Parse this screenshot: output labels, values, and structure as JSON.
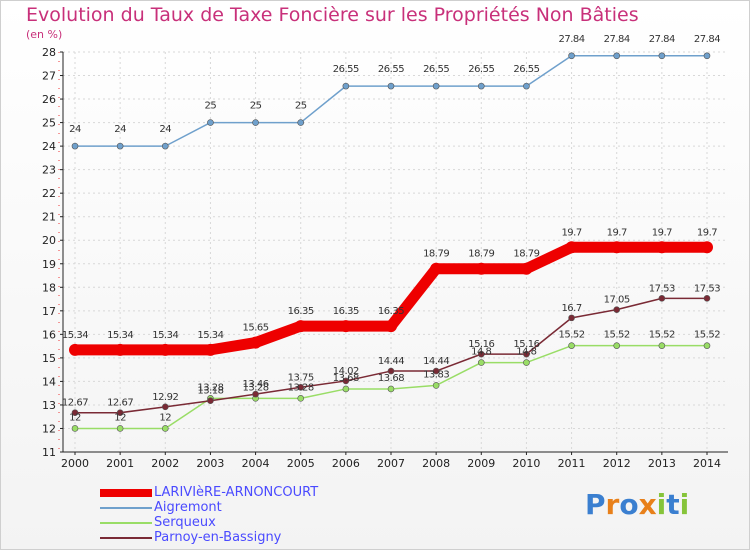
{
  "chart_data": {
    "type": "line",
    "title": "Evolution du Taux de Taxe Foncière sur les Propriétés Non Bâties",
    "unit_label": "(en %)",
    "xlabel": "",
    "ylabel": "",
    "ylim": [
      11,
      28
    ],
    "yticks": [
      11,
      12,
      13,
      14,
      15,
      16,
      17,
      18,
      19,
      20,
      21,
      22,
      23,
      24,
      25,
      26,
      27,
      28
    ],
    "categories": [
      "2000",
      "2001",
      "2002",
      "2003",
      "2004",
      "2005",
      "2006",
      "2007",
      "2008",
      "2009",
      "2010",
      "2011",
      "2012",
      "2013",
      "2014"
    ],
    "grid": true,
    "legend_position": "bottom-left",
    "series": [
      {
        "name": "LARIVIèRE-ARNONCOURT",
        "color": "#ee0000",
        "values": [
          15.34,
          15.34,
          15.34,
          15.34,
          15.65,
          16.35,
          16.35,
          16.35,
          18.79,
          18.79,
          18.79,
          19.7,
          19.7,
          19.7,
          19.7
        ],
        "labels": [
          "15.34",
          "15.34",
          "15.34",
          "15.34",
          "15.65",
          "16.35",
          "16.35",
          "16.35",
          "18.79",
          "18.79",
          "18.79",
          "19.7",
          "19.7",
          "19.7",
          "19.7"
        ]
      },
      {
        "name": "Aigremont",
        "color": "#6fa0cc",
        "values": [
          24,
          24,
          24,
          25,
          25,
          25,
          26.55,
          26.55,
          26.55,
          26.55,
          26.55,
          27.84,
          27.84,
          27.84,
          27.84
        ],
        "labels": [
          "24",
          "24",
          "24",
          "25",
          "25",
          "25",
          "26.55",
          "26.55",
          "26.55",
          "26.55",
          "26.55",
          "27.84",
          "27.84",
          "27.84",
          "27.84"
        ]
      },
      {
        "name": "Serqueux",
        "color": "#99dd66",
        "values": [
          12,
          12,
          12,
          13.28,
          13.28,
          13.28,
          13.68,
          13.68,
          13.83,
          14.8,
          14.8,
          15.52,
          15.52,
          15.52,
          15.52
        ],
        "labels": [
          "12",
          "12",
          "12",
          "13.28",
          "13.28",
          "13.28",
          "13.68",
          "13.68",
          "13.83",
          "14.8",
          "14.8",
          "15.52",
          "15.52",
          "15.52",
          "15.52"
        ]
      },
      {
        "name": "Parnoy-en-Bassigny",
        "color": "#7a2a35",
        "values": [
          12.67,
          12.67,
          12.92,
          13.18,
          13.46,
          13.75,
          14.02,
          14.44,
          14.44,
          15.16,
          15.16,
          16.7,
          17.05,
          17.53,
          17.53
        ],
        "labels": [
          "12.67",
          "12.67",
          "12.92",
          "13.18",
          "13.46",
          "13.75",
          "14.02",
          "14.44",
          "14.44",
          "15.16",
          "15.16",
          "16.7",
          "17.05",
          "17.53",
          "17.53"
        ]
      }
    ]
  },
  "logo": {
    "letters": [
      "P",
      "r",
      "o",
      "x",
      "i",
      "t",
      "i"
    ],
    "colors": [
      "#3a7fd0",
      "#e8801a",
      "#3a7fd0",
      "#e8801a",
      "#86c43a",
      "#3a7fd0",
      "#86c43a"
    ]
  }
}
